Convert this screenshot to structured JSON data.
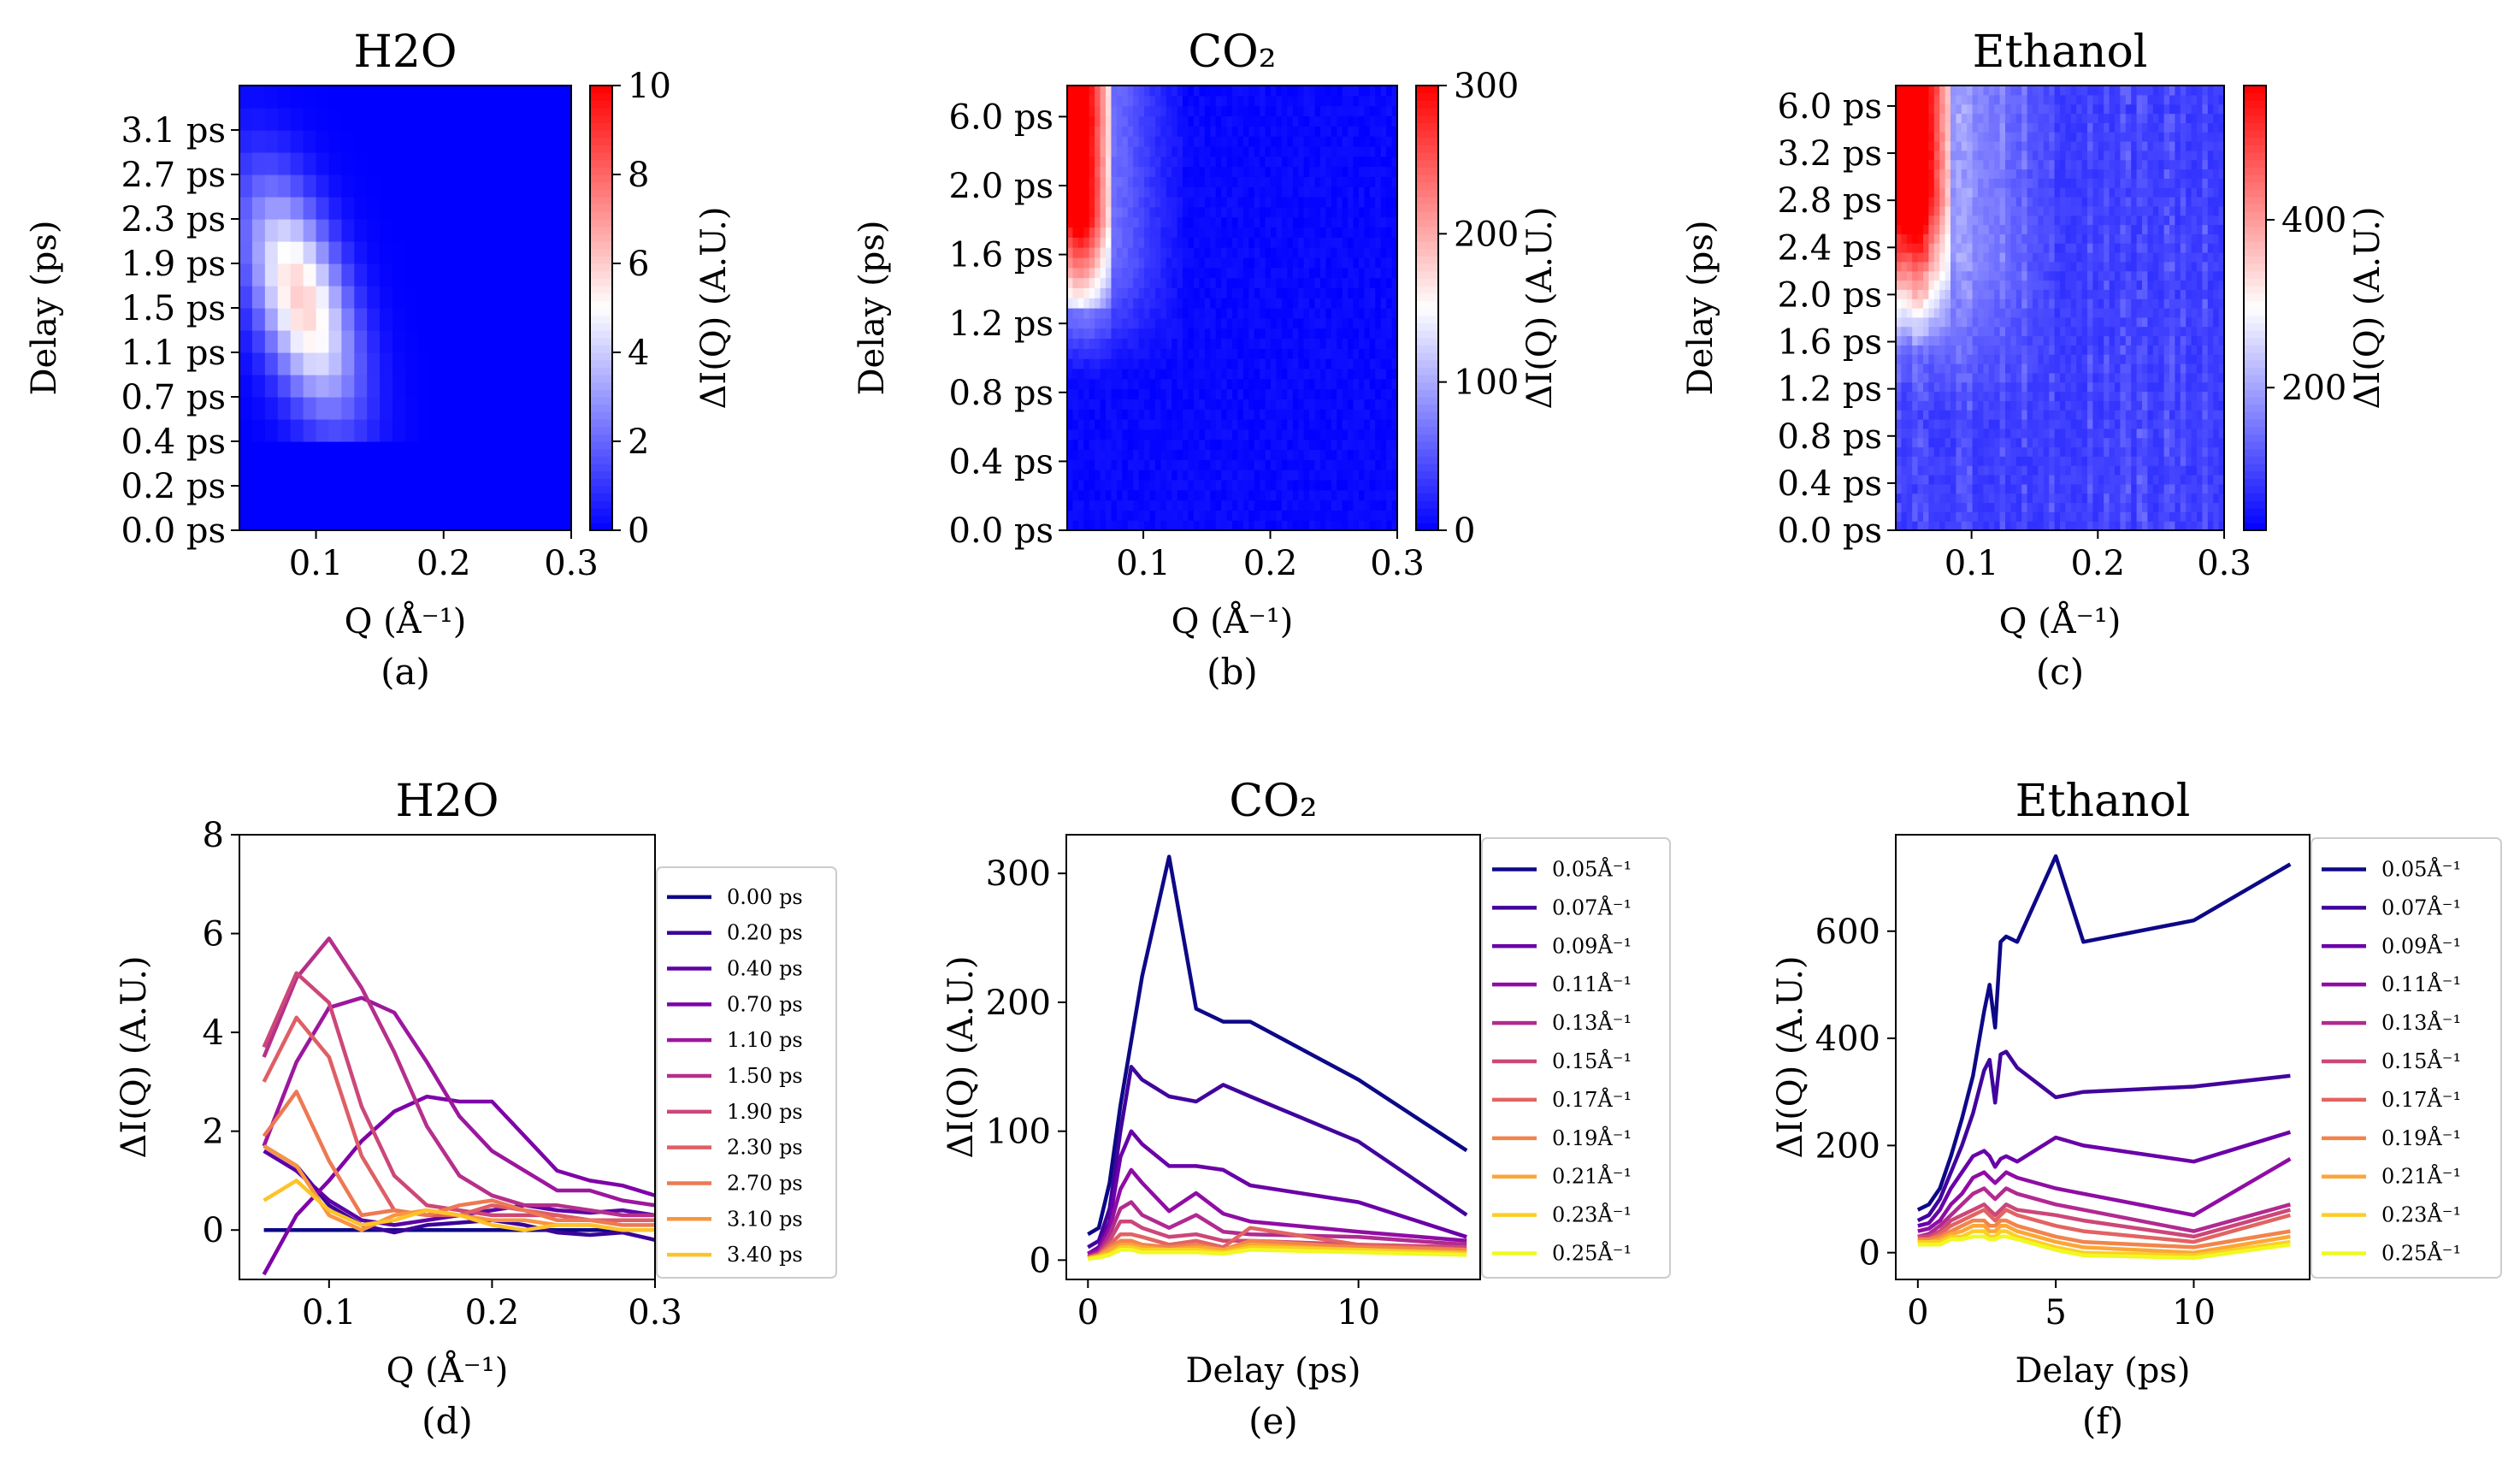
{
  "chart_data": [
    {
      "panel": "(a)",
      "type": "heatmap",
      "title": "H2O",
      "xlabel": "Q (Å⁻¹)",
      "ylabel": "Delay (ps)",
      "colorbar_label": "ΔI(Q) (A.U.)",
      "colormap": "bwr",
      "xlim": [
        0.04,
        0.3
      ],
      "x_ticks": [
        "0.1",
        "0.2",
        "0.3"
      ],
      "y_ticks": [
        "0.0 ps",
        "0.2 ps",
        "0.4 ps",
        "0.7 ps",
        "1.1 ps",
        "1.5 ps",
        "1.9 ps",
        "2.3 ps",
        "2.7 ps",
        "3.1 ps"
      ],
      "colorbar_range": [
        0,
        10
      ],
      "colorbar_ticks": [
        "0",
        "2",
        "4",
        "6",
        "8",
        "10"
      ],
      "grid": false
    },
    {
      "panel": "(b)",
      "type": "heatmap",
      "title": "CO₂",
      "xlabel": "Q (Å⁻¹)",
      "ylabel": "Delay (ps)",
      "colorbar_label": "ΔI(Q) (A.U.)",
      "colormap": "bwr",
      "xlim": [
        0.04,
        0.3
      ],
      "x_ticks": [
        "0.1",
        "0.2",
        "0.3"
      ],
      "y_ticks": [
        "0.0 ps",
        "0.4 ps",
        "0.8 ps",
        "1.2 ps",
        "1.6 ps",
        "2.0 ps",
        "6.0 ps"
      ],
      "colorbar_range": [
        0,
        300
      ],
      "colorbar_ticks": [
        "0",
        "100",
        "200",
        "300"
      ],
      "grid": false
    },
    {
      "panel": "(c)",
      "type": "heatmap",
      "title": "Ethanol",
      "xlabel": "Q (Å⁻¹)",
      "ylabel": "Delay (ps)",
      "colorbar_label": "ΔI(Q) (A.U.)",
      "colormap": "bwr",
      "xlim": [
        0.04,
        0.3
      ],
      "x_ticks": [
        "0.1",
        "0.2",
        "0.3"
      ],
      "y_ticks": [
        "0.0 ps",
        "0.4 ps",
        "0.8 ps",
        "1.2 ps",
        "1.6 ps",
        "2.0 ps",
        "2.4 ps",
        "2.8 ps",
        "3.2 ps",
        "6.0 ps"
      ],
      "colorbar_range": [
        30,
        560
      ],
      "colorbar_ticks": [
        "200",
        "400"
      ],
      "grid": false
    },
    {
      "panel": "(d)",
      "type": "line",
      "title": "H2O",
      "xlabel": "Q (Å⁻¹)",
      "ylabel": "ΔI(Q) (A.U.)",
      "xlim": [
        0.045,
        0.3
      ],
      "ylim": [
        -1,
        8
      ],
      "x_ticks": [
        0.1,
        0.2,
        0.3
      ],
      "y_ticks": [
        0,
        2,
        4,
        6,
        8
      ],
      "legend_position": "outside-right",
      "x": [
        0.06,
        0.08,
        0.1,
        0.12,
        0.14,
        0.16,
        0.18,
        0.2,
        0.22,
        0.24,
        0.26,
        0.28,
        0.3
      ],
      "series": [
        {
          "name": "0.00 ps",
          "color": "#0d0887",
          "values": [
            0,
            0,
            0,
            0,
            0,
            0,
            0,
            0,
            0,
            0,
            0,
            0,
            0
          ]
        },
        {
          "name": "0.20 ps",
          "color": "#3a049a",
          "values": [
            1.7,
            1.3,
            0.5,
            0.1,
            -0.05,
            0.1,
            0.15,
            0.2,
            0.1,
            -0.05,
            -0.1,
            -0.05,
            -0.2
          ]
        },
        {
          "name": "0.40 ps",
          "color": "#5c01a6",
          "values": [
            1.6,
            1.2,
            0.6,
            0.2,
            0.1,
            0.2,
            0.3,
            0.4,
            0.5,
            0.4,
            0.35,
            0.4,
            0.3
          ]
        },
        {
          "name": "0.70 ps",
          "color": "#7e03a8",
          "values": [
            -0.9,
            0.3,
            1.0,
            1.8,
            2.4,
            2.7,
            2.6,
            2.6,
            1.9,
            1.2,
            1.0,
            0.9,
            0.7
          ]
        },
        {
          "name": "1.10 ps",
          "color": "#9c179e",
          "values": [
            1.7,
            3.4,
            4.5,
            4.7,
            4.4,
            3.4,
            2.3,
            1.6,
            1.2,
            0.8,
            0.8,
            0.6,
            0.5
          ]
        },
        {
          "name": "1.50 ps",
          "color": "#b52f8c",
          "values": [
            3.5,
            5.1,
            5.9,
            4.9,
            3.6,
            2.1,
            1.1,
            0.7,
            0.5,
            0.5,
            0.4,
            0.3,
            0.3
          ]
        },
        {
          "name": "1.90 ps",
          "color": "#cc4778",
          "values": [
            3.7,
            5.2,
            4.6,
            2.5,
            1.1,
            0.5,
            0.4,
            0.3,
            0.3,
            0.3,
            0.2,
            0.2,
            0.2
          ]
        },
        {
          "name": "2.30 ps",
          "color": "#de5f65",
          "values": [
            3.0,
            4.3,
            3.5,
            1.5,
            0.4,
            0.3,
            0.3,
            0.5,
            0.4,
            0.3,
            0.2,
            0.2,
            0.2
          ]
        },
        {
          "name": "2.70 ps",
          "color": "#ed7953",
          "values": [
            1.9,
            2.8,
            1.4,
            0.3,
            0.4,
            0.3,
            0.5,
            0.6,
            0.4,
            0.2,
            0.2,
            0.1,
            0.1
          ]
        },
        {
          "name": "3.10 ps",
          "color": "#f89540",
          "values": [
            1.7,
            1.3,
            0.3,
            0.0,
            0.3,
            0.4,
            0.3,
            0.2,
            0.2,
            0.1,
            0.1,
            0.0,
            0.0
          ]
        },
        {
          "name": "3.40 ps",
          "color": "#fdc328",
          "values": [
            0.6,
            1.0,
            0.4,
            0.1,
            0.2,
            0.4,
            0.3,
            0.1,
            0.0,
            0.1,
            0.1,
            0.0,
            0.0
          ]
        }
      ]
    },
    {
      "panel": "(e)",
      "type": "line",
      "title": "CO₂",
      "xlabel": "Delay (ps)",
      "ylabel": "ΔI(Q) (A.U.)",
      "xlim": [
        -0.8,
        14.5
      ],
      "ylim": [
        -15,
        330
      ],
      "x_ticks": [
        0,
        10
      ],
      "y_ticks": [
        0,
        100,
        200,
        300
      ],
      "legend_position": "outside-right",
      "x": [
        0,
        0.4,
        0.8,
        1.2,
        1.6,
        2.0,
        3.0,
        4.0,
        5.0,
        6.0,
        10.0,
        14.0
      ],
      "series": [
        {
          "name": "0.05Å⁻¹",
          "color": "#0d0887",
          "values": [
            20,
            25,
            60,
            120,
            170,
            220,
            313,
            195,
            185,
            185,
            140,
            85
          ]
        },
        {
          "name": "0.07Å⁻¹",
          "color": "#41049d",
          "values": [
            10,
            15,
            40,
            100,
            150,
            140,
            127,
            123,
            136,
            127,
            92,
            35
          ]
        },
        {
          "name": "0.09Å⁻¹",
          "color": "#6a00a8",
          "values": [
            5,
            10,
            30,
            80,
            100,
            90,
            73,
            73,
            70,
            58,
            45,
            18
          ]
        },
        {
          "name": "0.11Å⁻¹",
          "color": "#8f0da4",
          "values": [
            5,
            8,
            25,
            55,
            70,
            60,
            38,
            52,
            36,
            30,
            22,
            15
          ]
        },
        {
          "name": "0.13Å⁻¹",
          "color": "#b12a90",
          "values": [
            3,
            6,
            20,
            40,
            45,
            35,
            25,
            35,
            22,
            20,
            18,
            12
          ]
        },
        {
          "name": "0.15Å⁻¹",
          "color": "#cc4778",
          "values": [
            2,
            5,
            15,
            30,
            30,
            25,
            18,
            20,
            15,
            15,
            12,
            10
          ]
        },
        {
          "name": "0.17Å⁻¹",
          "color": "#e16462",
          "values": [
            2,
            4,
            12,
            20,
            20,
            18,
            12,
            15,
            10,
            25,
            12,
            8
          ]
        },
        {
          "name": "0.19Å⁻¹",
          "color": "#f2844b",
          "values": [
            2,
            4,
            10,
            15,
            15,
            12,
            10,
            12,
            8,
            15,
            10,
            8
          ]
        },
        {
          "name": "0.21Å⁻¹",
          "color": "#fca636",
          "values": [
            1,
            3,
            8,
            12,
            12,
            10,
            8,
            10,
            8,
            12,
            8,
            6
          ]
        },
        {
          "name": "0.23Å⁻¹",
          "color": "#fcce25",
          "values": [
            1,
            3,
            5,
            10,
            10,
            8,
            8,
            8,
            6,
            10,
            8,
            5
          ]
        },
        {
          "name": "0.25Å⁻¹",
          "color": "#f0f921",
          "values": [
            1,
            2,
            4,
            8,
            8,
            6,
            6,
            6,
            5,
            8,
            6,
            4
          ]
        }
      ]
    },
    {
      "panel": "(f)",
      "type": "line",
      "title": "Ethanol",
      "xlabel": "Delay (ps)",
      "ylabel": "ΔI(Q) (A.U.)",
      "xlim": [
        -0.8,
        14.2
      ],
      "ylim": [
        -50,
        780
      ],
      "x_ticks": [
        0,
        5,
        10
      ],
      "y_ticks": [
        0,
        200,
        400,
        600
      ],
      "legend_position": "outside-right",
      "x": [
        0,
        0.4,
        0.8,
        1.2,
        1.6,
        2.0,
        2.4,
        2.6,
        2.8,
        3.0,
        3.2,
        3.6,
        5.0,
        6.0,
        10.0,
        13.5
      ],
      "series": [
        {
          "name": "0.05Å⁻¹",
          "color": "#0d0887",
          "values": [
            80,
            90,
            120,
            180,
            250,
            330,
            450,
            500,
            420,
            580,
            590,
            580,
            740,
            580,
            620,
            725
          ]
        },
        {
          "name": "0.07Å⁻¹",
          "color": "#41049d",
          "values": [
            60,
            70,
            100,
            150,
            200,
            260,
            340,
            360,
            280,
            370,
            375,
            345,
            290,
            300,
            310,
            330
          ]
        },
        {
          "name": "0.09Å⁻¹",
          "color": "#6a00a8",
          "values": [
            50,
            55,
            80,
            120,
            150,
            180,
            190,
            180,
            160,
            175,
            180,
            170,
            215,
            200,
            170,
            225
          ]
        },
        {
          "name": "0.11Å⁻¹",
          "color": "#8f0da4",
          "values": [
            40,
            45,
            60,
            90,
            110,
            140,
            150,
            140,
            130,
            140,
            150,
            140,
            120,
            110,
            70,
            175
          ]
        },
        {
          "name": "0.13Å⁻¹",
          "color": "#b12a90",
          "values": [
            30,
            35,
            50,
            70,
            90,
            110,
            120,
            110,
            100,
            110,
            120,
            110,
            90,
            80,
            40,
            90
          ]
        },
        {
          "name": "0.15Å⁻¹",
          "color": "#cc4778",
          "values": [
            30,
            30,
            40,
            60,
            70,
            80,
            90,
            80,
            70,
            80,
            90,
            80,
            70,
            60,
            30,
            80
          ]
        },
        {
          "name": "0.17Å⁻¹",
          "color": "#e16462",
          "values": [
            25,
            25,
            35,
            50,
            60,
            70,
            80,
            70,
            60,
            70,
            80,
            70,
            50,
            40,
            20,
            70
          ]
        },
        {
          "name": "0.19Å⁻¹",
          "color": "#f2844b",
          "values": [
            25,
            25,
            30,
            40,
            50,
            60,
            60,
            50,
            50,
            60,
            60,
            50,
            30,
            20,
            10,
            40
          ]
        },
        {
          "name": "0.21Å⁻¹",
          "color": "#fca636",
          "values": [
            20,
            20,
            25,
            35,
            40,
            50,
            50,
            40,
            40,
            50,
            50,
            40,
            20,
            10,
            0,
            30
          ]
        },
        {
          "name": "0.23Å⁻¹",
          "color": "#fcce25",
          "values": [
            20,
            20,
            20,
            30,
            30,
            40,
            40,
            30,
            30,
            40,
            40,
            30,
            10,
            0,
            -5,
            20
          ]
        },
        {
          "name": "0.25Å⁻¹",
          "color": "#f0f921",
          "values": [
            15,
            15,
            15,
            25,
            25,
            30,
            30,
            25,
            25,
            30,
            30,
            25,
            5,
            -5,
            -10,
            15
          ]
        }
      ]
    }
  ]
}
